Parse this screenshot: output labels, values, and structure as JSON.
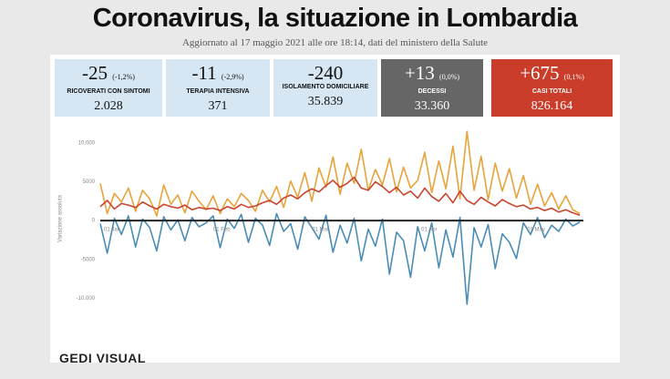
{
  "header": {
    "title": "Coronavirus, la situazione in Lombardia",
    "subtitle": "Aggiornato al 17 maggio 2021 alle ore 18:14, dati del ministero della Salute"
  },
  "stats": [
    {
      "change": "-25",
      "percent": "(-1,2%)",
      "label": "RICOVERATI CON SINTOMI",
      "value": "2.028"
    },
    {
      "change": "-11",
      "percent": "(-2,9%)",
      "label": "TERAPIA INTENSIVA",
      "value": "371"
    },
    {
      "change": "-240",
      "label": "ISOLAMENTO DOMICILIARE",
      "value": "35.839"
    },
    {
      "change": "+13",
      "percent": "(0,0%)",
      "label": "DECESSI",
      "value": "33.360"
    },
    {
      "change": "+675",
      "percent": "(0,1%)",
      "label": "CASI TOTALI",
      "value": "826.164"
    }
  ],
  "chart_data": {
    "type": "line",
    "y_label": "Variazione assoluta",
    "x": [
      0,
      2,
      4,
      6,
      8,
      10,
      12,
      14,
      16,
      18,
      20,
      22,
      24,
      26,
      28,
      30,
      32,
      34,
      36,
      38,
      40,
      42,
      44,
      46,
      48,
      50,
      52,
      54,
      56,
      58,
      60,
      62,
      64,
      66,
      68,
      70,
      72,
      74,
      76,
      78,
      80,
      82,
      84,
      86,
      88,
      90,
      92,
      94,
      96,
      98,
      100,
      102,
      104,
      106,
      108,
      110,
      112,
      114,
      116,
      118,
      120,
      122,
      124,
      126,
      128,
      130,
      132,
      134,
      136
    ],
    "xlim": [
      0,
      137
    ],
    "xticks": [
      {
        "value": 0,
        "label": "01 Jan"
      },
      {
        "value": 31,
        "label": "01 Feb"
      },
      {
        "value": 59,
        "label": "01 Mar"
      },
      {
        "value": 90,
        "label": "01 Apr"
      },
      {
        "value": 120,
        "label": "01 May"
      }
    ],
    "ylim": [
      -11500,
      12000
    ],
    "yticks": [
      {
        "value": -10000,
        "label": "-10.000"
      },
      -5000,
      0,
      5000,
      {
        "value": 10000,
        "label": "10.000"
      }
    ],
    "series": [
      {
        "color": "#e8a33a",
        "values": [
          4800,
          900,
          3500,
          2400,
          4200,
          1200,
          3900,
          2800,
          600,
          4600,
          2100,
          3300,
          1000,
          3800,
          2500,
          1400,
          3200,
          900,
          2800,
          1800,
          3500,
          2600,
          1200,
          3900,
          2400,
          4400,
          1700,
          5100,
          3000,
          6200,
          2500,
          6800,
          4300,
          8200,
          3400,
          7400,
          4800,
          9200,
          3900,
          6600,
          4600,
          8000,
          3700,
          6900,
          4200,
          5200,
          8800,
          3600,
          7700,
          4100,
          9600,
          2800,
          11500,
          3900,
          8300,
          2700,
          7400,
          3800,
          6700,
          2900,
          5800,
          2100,
          4700,
          1900,
          3600,
          1500,
          3200,
          1400,
          900
        ]
      },
      {
        "color": "#c8452f",
        "values": [
          1800,
          2600,
          1500,
          2200,
          2000,
          1700,
          2400,
          1900,
          1500,
          2100,
          1800,
          1600,
          2000,
          1400,
          1700,
          1500,
          1600,
          1300,
          1800,
          1500,
          2100,
          1700,
          1900,
          2300,
          2600,
          2100,
          2900,
          3300,
          2800,
          3600,
          4100,
          3700,
          4500,
          5200,
          4300,
          4800,
          5600,
          4200,
          3900,
          5000,
          4400,
          3600,
          4300,
          3300,
          3800,
          2900,
          4200,
          3100,
          2500,
          3500,
          2300,
          3800,
          2600,
          2100,
          3000,
          2400,
          1900,
          2700,
          2200,
          1800,
          2000,
          1500,
          1700,
          1300,
          1600,
          1100,
          1400,
          1000,
          700
        ]
      },
      {
        "color": "#4a8db5",
        "values": [
          -400,
          -4200,
          300,
          -1800,
          600,
          -3400,
          200,
          -900,
          -3900,
          500,
          -1200,
          100,
          -2600,
          400,
          -800,
          -300,
          600,
          -3500,
          200,
          -1000,
          800,
          -2800,
          300,
          -600,
          -3200,
          900,
          -1400,
          -400,
          -3700,
          500,
          -900,
          -2400,
          700,
          -4100,
          -600,
          -2900,
          300,
          -5200,
          -1100,
          -3300,
          200,
          -6900,
          -1500,
          -2600,
          -7300,
          -800,
          -3900,
          -300,
          -6100,
          -1200,
          -4700,
          400,
          -10800,
          -900,
          -3400,
          -500,
          -6200,
          -1700,
          -2800,
          -4900,
          -300,
          -1800,
          400,
          -2200,
          -600,
          -1400,
          200,
          -700,
          -200
        ]
      }
    ]
  },
  "footer": "GEDI VISUAL"
}
